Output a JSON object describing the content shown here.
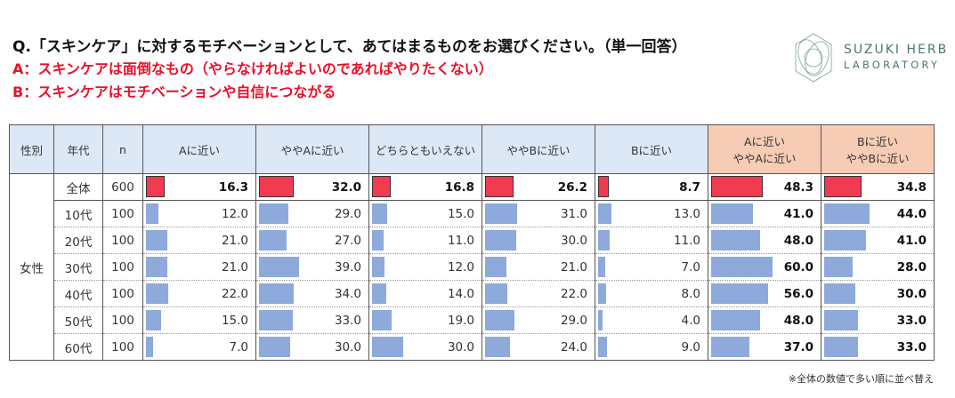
{
  "question": "Q.「スキンケア」に対するモチベーションとして、あてはまるものをお選びください。（単一回答）",
  "option_a": "A：スキンケアは面倒なもの（やらなければよいのであればやりたくない）",
  "option_b": "B：スキンケアはモチベーションや自信につながる",
  "logo": {
    "line1": "SUZUKI HERB",
    "line2": "LABORATORY"
  },
  "colors": {
    "highlight": "#f23b50",
    "bar": "#8eaadb",
    "header": "#dce8f5",
    "summary_header": "#f6cdb4",
    "title_red": "#e8102a"
  },
  "table": {
    "headers": [
      "性別",
      "年代",
      "n",
      "Aに近い",
      "ややAに近い",
      "どちらともいえない",
      "ややBに近い",
      "Bに近い",
      "Aに近い\nややAに近い",
      "Bに近い\nややBに近い"
    ],
    "gender": "女性",
    "rows": [
      {
        "age": "全体",
        "n": "600",
        "values": [
          "16.3",
          "32.0",
          "16.8",
          "26.2",
          "8.7",
          "48.3",
          "34.8"
        ]
      },
      {
        "age": "10代",
        "n": "100",
        "values": [
          "12.0",
          "29.0",
          "15.0",
          "31.0",
          "13.0",
          "41.0",
          "44.0"
        ]
      },
      {
        "age": "20代",
        "n": "100",
        "values": [
          "21.0",
          "27.0",
          "11.0",
          "30.0",
          "11.0",
          "48.0",
          "41.0"
        ]
      },
      {
        "age": "30代",
        "n": "100",
        "values": [
          "21.0",
          "39.0",
          "12.0",
          "21.0",
          "7.0",
          "60.0",
          "28.0"
        ]
      },
      {
        "age": "40代",
        "n": "100",
        "values": [
          "22.0",
          "34.0",
          "14.0",
          "22.0",
          "8.0",
          "56.0",
          "30.0"
        ]
      },
      {
        "age": "50代",
        "n": "100",
        "values": [
          "15.0",
          "33.0",
          "19.0",
          "29.0",
          "4.0",
          "48.0",
          "33.0"
        ]
      },
      {
        "age": "60代",
        "n": "100",
        "values": [
          "7.0",
          "30.0",
          "30.0",
          "24.0",
          "9.0",
          "37.0",
          "33.0"
        ]
      }
    ]
  },
  "note": "※全体の数値で多い順に並べ替え"
}
